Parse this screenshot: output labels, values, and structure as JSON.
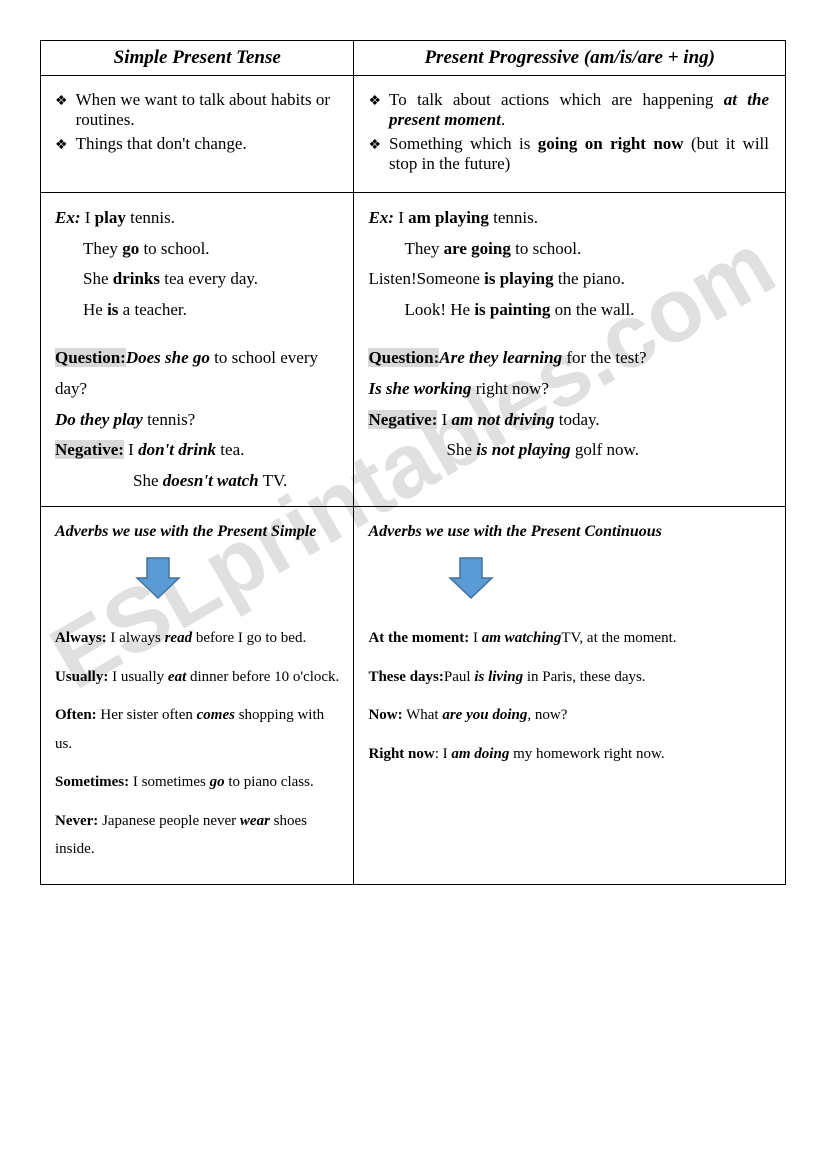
{
  "watermark": "ESLprintables.com",
  "headers": {
    "left": "Simple Present Tense",
    "right": "Present Progressive (am/is/are + ing)"
  },
  "bullets": {
    "left": [
      "When we want to talk about habits or routines.",
      "Things that don't change."
    ],
    "right_parts": {
      "r1_pre": "To talk about actions which are happening ",
      "r1_b": "at the present moment",
      "r1_post": ".",
      "r2_pre": "Something which is ",
      "r2_b": "going on right now",
      "r2_post": " (but it will stop in the future)"
    }
  },
  "ex": {
    "left": {
      "ex_label": "Ex:",
      "l1_pre": " I ",
      "l1_b": "play",
      "l1_post": " tennis.",
      "l2_pre": "They ",
      "l2_b": "go",
      "l2_post": " to school.",
      "l3_pre": "She ",
      "l3_b": "drinks",
      "l3_post": " tea every day.",
      "l4_pre": "He ",
      "l4_b": "is",
      "l4_post": " a teacher.",
      "q_label": "Question:",
      "q1": "Does she go",
      "q1_post": " to school every day?",
      "q2": "Do they play",
      "q2_post": " tennis?",
      "n_label": "Negative:",
      "n1_pre": " I ",
      "n1_b": "don't drink",
      "n1_post": " tea.",
      "n2_pre": "She ",
      "n2_b": "doesn't watch",
      "n2_post": " TV."
    },
    "right": {
      "ex_label": "Ex:",
      "r1_pre": " I ",
      "r1_b": "am playing",
      "r1_post": " tennis.",
      "r2_pre": "They ",
      "r2_b": "are going",
      "r2_post": " to school.",
      "r3_pre": "Listen!Someone ",
      "r3_b": "is playing",
      "r3_post": " the piano.",
      "r4_pre": "Look! He ",
      "r4_b": "is painting",
      "r4_post": " on the wall.",
      "q_label": "Question:",
      "q1": "Are they learning",
      "q1_post": " for the test?",
      "q2": "Is she working",
      "q2_post": " right now?",
      "n_label": "Negative:",
      "n1_pre": " I ",
      "n1_b": "am not driving",
      "n1_post": " today.",
      "n2_pre": "She ",
      "n2_b": "is not playing",
      "n2_post": " golf now."
    }
  },
  "adv": {
    "left": {
      "title": "Adverbs we use with the Present Simple",
      "items": [
        {
          "label": "Always:",
          "pre": " I always ",
          "verb": "read",
          "post": " before I go to bed."
        },
        {
          "label": "Usually:",
          "pre": " I usually ",
          "verb": "eat",
          "post": " dinner before 10 o'clock."
        },
        {
          "label": "Often:",
          "pre": " Her sister often ",
          "verb": "comes",
          "post": " shopping with us."
        },
        {
          "label": "Sometimes:",
          "pre": " I sometimes ",
          "verb": "go",
          "post": " to piano class."
        },
        {
          "label": "Never:",
          "pre": " Japanese people never ",
          "verb": "wear",
          "post": " shoes inside."
        }
      ]
    },
    "right": {
      "title": "Adverbs we use with the Present Continuous",
      "items": [
        {
          "label": "At the moment:",
          "pre": " I ",
          "verb": "am watching",
          "post": "TV, at the moment."
        },
        {
          "label": "These days:",
          "pre": "Paul ",
          "verb": "is living",
          "post": " in Paris, these days."
        },
        {
          "label": "Now:",
          "pre": " What ",
          "verb": "are you doing",
          "post": ", now?"
        },
        {
          "label": "Right now",
          "pre": ": I ",
          "verb": "am doing",
          "post": " my homework right now."
        }
      ]
    }
  },
  "colors": {
    "arrow_fill": "#5b9bd5",
    "arrow_stroke": "#41719c"
  }
}
